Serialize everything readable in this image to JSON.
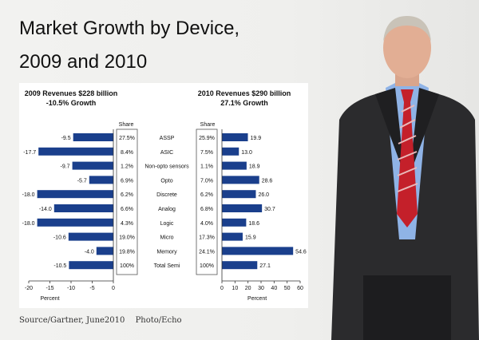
{
  "header": {
    "title_line1": "Market Growth by Device,",
    "title_line2": "2009 and 2010"
  },
  "footer": {
    "source": "Source/Gartner, June2010",
    "photo_credit": "Photo/Echo"
  },
  "chart_data": [
    {
      "type": "bar",
      "orientation": "horizontal",
      "title": "2009 Revenues $228 billion",
      "subtitle": "-10.5% Growth",
      "xlabel": "Percent",
      "xlim": [
        -20,
        0
      ],
      "xticks": [
        "-20",
        "-15",
        "-10",
        "-5",
        "0"
      ],
      "share_header": "Share",
      "categories": [
        "ASSP",
        "ASIC",
        "Non-opto sensors",
        "Opto",
        "Discrete",
        "Analog",
        "Logic",
        "Micro",
        "Memory",
        "Total Semi"
      ],
      "values": [
        -9.5,
        -17.7,
        -9.7,
        -5.7,
        -18.0,
        -14.0,
        -18.0,
        -10.6,
        -4.0,
        -10.5
      ],
      "value_labels": [
        "-9.5",
        "-17.7",
        "-9.7",
        "-5.7",
        "-18.0",
        "-14.0",
        "-18.0",
        "-10.6",
        "-4.0",
        "-10.5"
      ],
      "share": [
        "27.5%",
        "8.4%",
        "1.2%",
        "6.9%",
        "6.2%",
        "6.6%",
        "4.3%",
        "19.0%",
        "19.8%",
        "100%"
      ],
      "color": "#1a3f8c"
    },
    {
      "type": "bar",
      "orientation": "horizontal",
      "title": "2010 Revenues $290 billion",
      "subtitle": "27.1% Growth",
      "xlabel": "Percent",
      "xlim": [
        0,
        60
      ],
      "xticks": [
        "0",
        "10",
        "20",
        "30",
        "40",
        "50",
        "60"
      ],
      "share_header": "Share",
      "categories": [
        "ASSP",
        "ASIC",
        "Non-opto sensors",
        "Opto",
        "Discrete",
        "Analog",
        "Logic",
        "Micro",
        "Memory",
        "Total Semi"
      ],
      "values": [
        19.9,
        13.0,
        18.9,
        28.6,
        26.0,
        30.7,
        18.6,
        15.9,
        54.6,
        27.1
      ],
      "value_labels": [
        "19.9",
        "13.0",
        "18.9",
        "28.6",
        "26.0",
        "30.7",
        "18.6",
        "15.9",
        "54.6",
        "27.1"
      ],
      "share": [
        "25.9%",
        "7.5%",
        "1.1%",
        "7.0%",
        "6.2%",
        "6.8%",
        "4.0%",
        "17.3%",
        "24.1%",
        "100%"
      ],
      "color": "#1a3f8c"
    }
  ],
  "colors": {
    "bar": "#1a3f8c",
    "panel_bg": "#ffffff",
    "page_bg": "#efefed",
    "suit": "#2b2b2d",
    "tie": "#c4202a",
    "shirt": "#8fb3e6"
  }
}
